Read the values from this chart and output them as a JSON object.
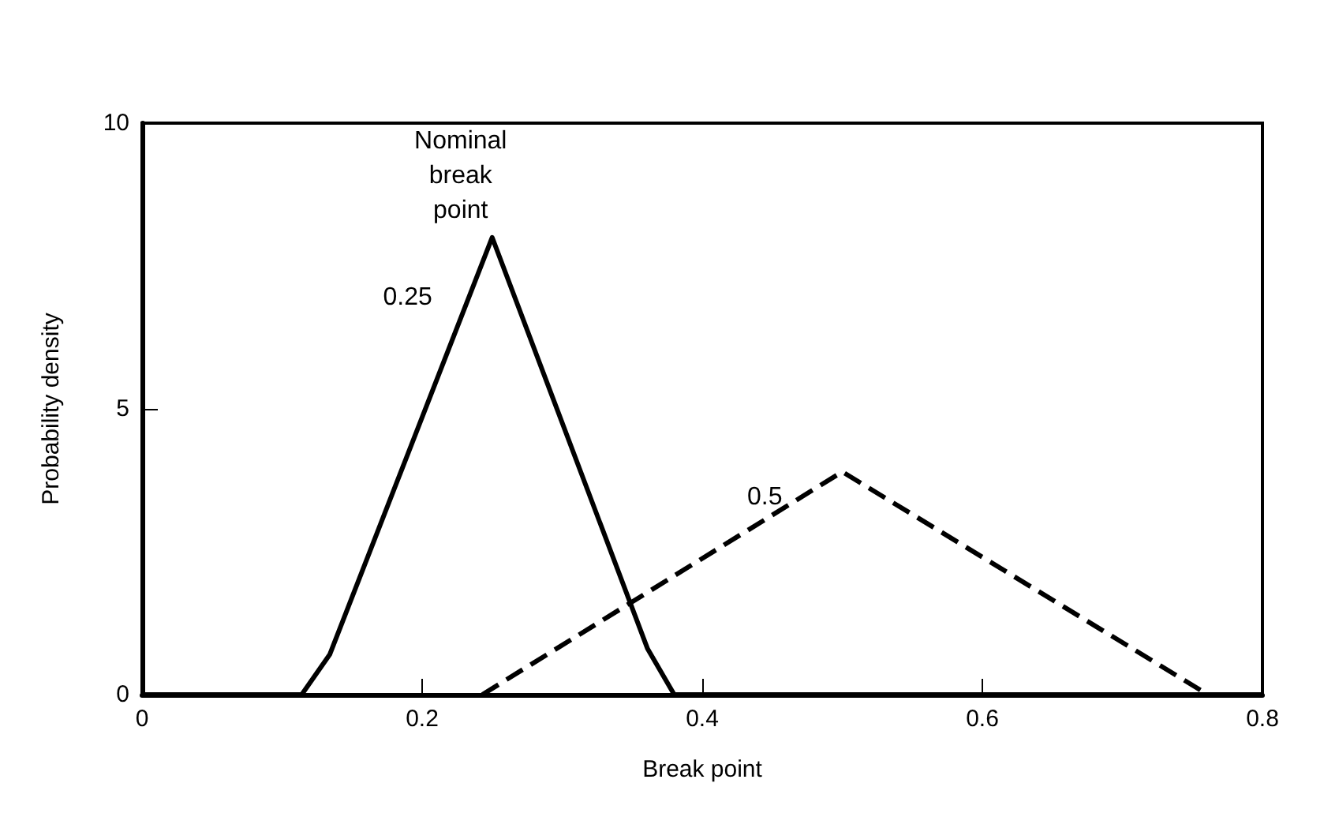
{
  "chart_data": {
    "type": "line",
    "xlabel": "Break point",
    "ylabel": "Probability density",
    "xlim": [
      0,
      0.8
    ],
    "xticks": [
      0,
      0.2,
      0.4,
      0.6,
      0.8
    ],
    "ylim": [
      0,
      10
    ],
    "yticks": [
      0,
      5,
      10
    ],
    "grid": false,
    "legend": false,
    "marker": "none",
    "series": [
      {
        "name": "0.25",
        "color": "#000000",
        "line_style": "solid",
        "x": [
          0,
          0.114,
          0.134,
          0.25,
          0.361,
          0.38,
          0.8
        ],
        "values": [
          0,
          0,
          0.7,
          8,
          0.8,
          0,
          0
        ]
      },
      {
        "name": "0.5",
        "color": "#000000",
        "line_style": "dashed",
        "x": [
          0.243,
          0.5,
          0.761
        ],
        "values": [
          0,
          3.9,
          0
        ]
      }
    ],
    "legend_title": "Nominal\nbreak\npoint"
  }
}
